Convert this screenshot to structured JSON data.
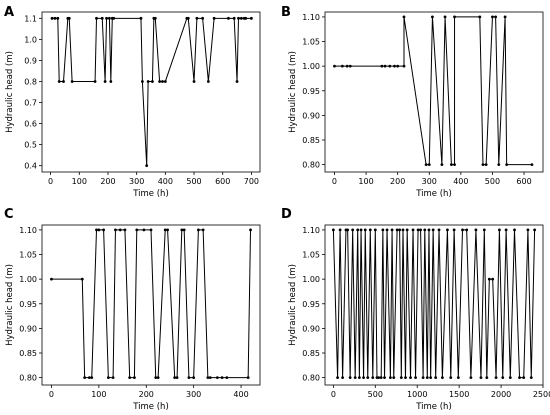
{
  "chart_data": [
    {
      "panel": "A",
      "type": "line",
      "xlabel": "Time (h)",
      "ylabel": "Hydraulic head (m)",
      "xlim": [
        -30,
        730
      ],
      "ylim": [
        0.37,
        1.13
      ],
      "xticks": [
        0,
        100,
        200,
        300,
        400,
        500,
        600,
        700
      ],
      "xtick_labels": [
        "0",
        "100",
        "200",
        "300",
        "400",
        "500",
        "600",
        "700"
      ],
      "yticks": [
        0.4,
        0.5,
        0.6,
        0.7,
        0.8,
        0.9,
        1.0,
        1.1
      ],
      "ytick_labels": [
        "0.4",
        "0.5",
        "0.6",
        "0.7",
        "0.8",
        "0.9",
        "1.0",
        "1.1"
      ],
      "grid": false,
      "x": [
        5,
        15,
        25,
        30,
        45,
        60,
        65,
        75,
        155,
        160,
        180,
        190,
        195,
        205,
        210,
        215,
        220,
        315,
        320,
        335,
        340,
        355,
        360,
        365,
        380,
        390,
        400,
        475,
        480,
        500,
        510,
        530,
        550,
        570,
        620,
        640,
        650,
        655,
        665,
        675,
        680,
        700
      ],
      "y": [
        1.1,
        1.1,
        1.1,
        0.8,
        0.8,
        1.1,
        1.1,
        0.8,
        0.8,
        1.1,
        1.1,
        0.8,
        1.1,
        1.1,
        0.8,
        1.1,
        1.1,
        1.1,
        0.8,
        0.4,
        0.8,
        0.8,
        1.1,
        1.1,
        0.8,
        0.8,
        0.8,
        1.1,
        1.1,
        0.8,
        1.1,
        1.1,
        0.8,
        1.1,
        1.1,
        1.1,
        0.8,
        1.1,
        1.1,
        1.1,
        1.1,
        1.1
      ]
    },
    {
      "panel": "B",
      "type": "line",
      "xlabel": "Time (h)",
      "ylabel": "Hydraulic head (m)",
      "xlim": [
        -30,
        660
      ],
      "ylim": [
        0.785,
        1.11
      ],
      "xticks": [
        0,
        100,
        200,
        300,
        400,
        500,
        600
      ],
      "xtick_labels": [
        "0",
        "100",
        "200",
        "300",
        "400",
        "500",
        "600"
      ],
      "yticks": [
        0.8,
        0.85,
        0.9,
        0.95,
        1.0,
        1.05,
        1.1
      ],
      "ytick_labels": [
        "0.80",
        "0.85",
        "0.90",
        "0.95",
        "1.00",
        "1.05",
        "1.10"
      ],
      "grid": false,
      "x": [
        0,
        25,
        40,
        50,
        150,
        160,
        175,
        190,
        200,
        220,
        220,
        290,
        300,
        310,
        340,
        350,
        370,
        380,
        380,
        460,
        470,
        480,
        500,
        510,
        520,
        540,
        545,
        625
      ],
      "y": [
        1.0,
        1.0,
        1.0,
        1.0,
        1.0,
        1.0,
        1.0,
        1.0,
        1.0,
        1.0,
        1.1,
        0.8,
        0.8,
        1.1,
        0.8,
        1.1,
        0.8,
        0.8,
        1.1,
        1.1,
        0.8,
        0.8,
        1.1,
        1.1,
        0.8,
        1.1,
        0.8,
        0.8
      ]
    },
    {
      "panel": "C",
      "type": "line",
      "xlabel": "Time (h)",
      "ylabel": "Hydraulic head (m)",
      "xlim": [
        -20,
        440
      ],
      "ylim": [
        0.785,
        1.11
      ],
      "xticks": [
        0,
        100,
        200,
        300,
        400
      ],
      "xtick_labels": [
        "0",
        "100",
        "200",
        "300",
        "400"
      ],
      "yticks": [
        0.8,
        0.85,
        0.9,
        0.95,
        1.0,
        1.05,
        1.1
      ],
      "ytick_labels": [
        "0.80",
        "0.85",
        "0.90",
        "0.95",
        "1.00",
        "1.05",
        "1.10"
      ],
      "grid": false,
      "x": [
        0,
        65,
        70,
        80,
        85,
        95,
        100,
        110,
        120,
        130,
        135,
        145,
        155,
        165,
        175,
        180,
        195,
        210,
        220,
        225,
        240,
        245,
        260,
        265,
        275,
        280,
        290,
        300,
        310,
        320,
        330,
        335,
        350,
        360,
        370,
        415,
        420
      ],
      "y": [
        1.0,
        1.0,
        0.8,
        0.8,
        0.8,
        1.1,
        1.1,
        1.1,
        0.8,
        0.8,
        1.1,
        1.1,
        1.1,
        0.8,
        0.8,
        1.1,
        1.1,
        1.1,
        0.8,
        0.8,
        1.1,
        1.1,
        0.8,
        0.8,
        1.1,
        1.1,
        0.8,
        0.8,
        1.1,
        1.1,
        0.8,
        0.8,
        0.8,
        0.8,
        0.8,
        0.8,
        1.1
      ]
    },
    {
      "panel": "D",
      "type": "line",
      "xlabel": "Time (h)",
      "ylabel": "Hydraulic head (m)",
      "xlim": [
        -100,
        2500
      ],
      "ylim": [
        0.785,
        1.11
      ],
      "xticks": [
        0,
        500,
        1000,
        1500,
        2000,
        2500
      ],
      "xtick_labels": [
        "0",
        "500",
        "1000",
        "1500",
        "2000",
        "2500"
      ],
      "yticks": [
        0.8,
        0.85,
        0.9,
        0.95,
        1.0,
        1.05,
        1.1
      ],
      "ytick_labels": [
        "0.80",
        "0.85",
        "0.90",
        "0.95",
        "1.00",
        "1.05",
        "1.10"
      ],
      "grid": false,
      "x": [
        0,
        50,
        80,
        110,
        150,
        170,
        200,
        230,
        260,
        290,
        310,
        330,
        360,
        380,
        410,
        440,
        470,
        500,
        520,
        540,
        570,
        590,
        610,
        640,
        680,
        700,
        720,
        760,
        790,
        810,
        830,
        860,
        880,
        920,
        950,
        980,
        1010,
        1040,
        1070,
        1090,
        1120,
        1140,
        1160,
        1190,
        1220,
        1260,
        1300,
        1360,
        1400,
        1440,
        1490,
        1540,
        1590,
        1640,
        1700,
        1760,
        1800,
        1830,
        1860,
        1900,
        1940,
        1980,
        2020,
        2060,
        2110,
        2160,
        2220,
        2270,
        2320,
        2360,
        2400
      ],
      "y": [
        1.1,
        0.8,
        1.1,
        0.8,
        1.1,
        1.1,
        0.8,
        1.1,
        0.8,
        1.1,
        0.8,
        1.1,
        0.8,
        1.1,
        0.8,
        1.1,
        0.8,
        1.1,
        0.8,
        0.8,
        0.8,
        1.1,
        0.8,
        1.1,
        0.8,
        1.1,
        0.8,
        1.1,
        1.1,
        0.8,
        1.1,
        0.8,
        1.1,
        0.8,
        1.1,
        0.8,
        1.1,
        1.1,
        0.8,
        1.1,
        0.8,
        1.1,
        0.8,
        1.1,
        0.8,
        1.1,
        0.8,
        1.1,
        0.8,
        1.1,
        0.8,
        1.1,
        1.1,
        0.8,
        1.1,
        0.8,
        1.1,
        0.8,
        1.0,
        1.0,
        0.8,
        1.1,
        0.8,
        1.1,
        0.8,
        1.1,
        0.8,
        0.8,
        1.1,
        0.8,
        1.1
      ]
    }
  ]
}
